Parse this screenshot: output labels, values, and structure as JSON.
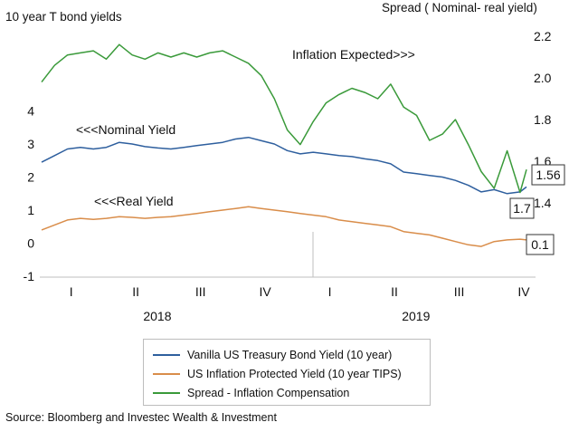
{
  "chart_data": {
    "type": "line",
    "left_axis_title": "10 year T bond yields",
    "right_axis_title": "Spread ( Nominal- real yield)",
    "left_axis": {
      "min": -1,
      "max": 5,
      "ticks": [
        "4",
        "3",
        "2",
        "1",
        "0",
        "-1"
      ],
      "tick_values": [
        4,
        3,
        2,
        1,
        0,
        -1
      ]
    },
    "right_axis": {
      "min": 1.2,
      "max": 2.2,
      "ticks": [
        "2.2",
        "2.0",
        "1.8",
        "1.6",
        "1.4"
      ],
      "tick_values": [
        2.2,
        2.0,
        1.8,
        1.6,
        1.4
      ]
    },
    "quarters": [
      "I",
      "II",
      "III",
      "IV",
      "I",
      "II",
      "III",
      "IV"
    ],
    "years": [
      "2018",
      "2019"
    ],
    "x_range": [
      2018.0,
      2019.875
    ],
    "grid": false,
    "series": [
      {
        "name": "Vanilla US Treasury Bond Yield (10 year)",
        "axis": "left",
        "color": "#2e5f9e",
        "annotation": "<<<Nominal Yield",
        "end_label": "1.7",
        "x": [
          2018.0,
          2018.05,
          2018.1,
          2018.15,
          2018.2,
          2018.25,
          2018.3,
          2018.35,
          2018.4,
          2018.45,
          2018.5,
          2018.55,
          2018.6,
          2018.65,
          2018.7,
          2018.75,
          2018.8,
          2018.85,
          2018.9,
          2018.95,
          2019.0,
          2019.05,
          2019.1,
          2019.15,
          2019.2,
          2019.25,
          2019.3,
          2019.35,
          2019.4,
          2019.45,
          2019.5,
          2019.55,
          2019.6,
          2019.65,
          2019.7,
          2019.75,
          2019.8,
          2019.85,
          2019.875
        ],
        "y": [
          2.45,
          2.65,
          2.85,
          2.9,
          2.85,
          2.9,
          3.05,
          3.0,
          2.92,
          2.88,
          2.85,
          2.9,
          2.95,
          3.0,
          3.05,
          3.15,
          3.2,
          3.1,
          3.0,
          2.8,
          2.7,
          2.75,
          2.7,
          2.65,
          2.62,
          2.55,
          2.5,
          2.4,
          2.15,
          2.1,
          2.05,
          2.0,
          1.9,
          1.75,
          1.55,
          1.62,
          1.5,
          1.55,
          1.7
        ]
      },
      {
        "name": "US Inflation Protected Yield (10 year TIPS)",
        "axis": "left",
        "color": "#d98d4a",
        "annotation": "<<<Real Yield",
        "end_label": "0.1",
        "x": [
          2018.0,
          2018.05,
          2018.1,
          2018.15,
          2018.2,
          2018.25,
          2018.3,
          2018.35,
          2018.4,
          2018.45,
          2018.5,
          2018.55,
          2018.6,
          2018.65,
          2018.7,
          2018.75,
          2018.8,
          2018.85,
          2018.9,
          2018.95,
          2019.0,
          2019.05,
          2019.1,
          2019.15,
          2019.2,
          2019.25,
          2019.3,
          2019.35,
          2019.4,
          2019.45,
          2019.5,
          2019.55,
          2019.6,
          2019.65,
          2019.7,
          2019.75,
          2019.8,
          2019.85,
          2019.875
        ],
        "y": [
          0.4,
          0.55,
          0.7,
          0.75,
          0.72,
          0.75,
          0.8,
          0.78,
          0.75,
          0.78,
          0.8,
          0.85,
          0.9,
          0.95,
          1.0,
          1.05,
          1.1,
          1.05,
          1.0,
          0.95,
          0.9,
          0.85,
          0.8,
          0.7,
          0.65,
          0.6,
          0.55,
          0.5,
          0.35,
          0.3,
          0.25,
          0.15,
          0.05,
          -0.05,
          -0.1,
          0.05,
          0.1,
          0.12,
          0.1
        ]
      },
      {
        "name": "Spread - Inflation Compensation",
        "axis": "right",
        "color": "#3a9a3a",
        "annotation": "Inflation Expected>>>",
        "end_label": "1.56",
        "x": [
          2018.0,
          2018.05,
          2018.1,
          2018.15,
          2018.2,
          2018.25,
          2018.3,
          2018.35,
          2018.4,
          2018.45,
          2018.5,
          2018.55,
          2018.6,
          2018.65,
          2018.7,
          2018.75,
          2018.8,
          2018.85,
          2018.9,
          2018.95,
          2019.0,
          2019.05,
          2019.1,
          2019.15,
          2019.2,
          2019.25,
          2019.3,
          2019.35,
          2019.4,
          2019.45,
          2019.5,
          2019.55,
          2019.6,
          2019.65,
          2019.7,
          2019.75,
          2019.8,
          2019.85,
          2019.875
        ],
        "y": [
          1.98,
          2.06,
          2.11,
          2.12,
          2.13,
          2.09,
          2.16,
          2.11,
          2.09,
          2.12,
          2.1,
          2.12,
          2.1,
          2.12,
          2.13,
          2.1,
          2.07,
          2.01,
          1.9,
          1.75,
          1.68,
          1.79,
          1.88,
          1.92,
          1.95,
          1.93,
          1.9,
          1.97,
          1.86,
          1.82,
          1.7,
          1.73,
          1.8,
          1.68,
          1.55,
          1.47,
          1.65,
          1.45,
          1.56
        ]
      }
    ]
  },
  "source": "Source: Bloomberg and Investec Wealth & Investment"
}
